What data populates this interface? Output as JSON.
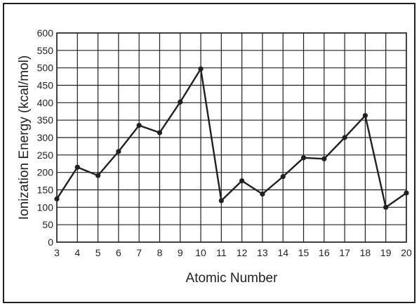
{
  "chart_data": {
    "type": "line",
    "title": "",
    "xlabel": "Atomic Number",
    "ylabel": "Ionization Energy (kcal/mol)",
    "x": [
      3,
      4,
      5,
      6,
      7,
      8,
      9,
      10,
      11,
      12,
      13,
      14,
      15,
      16,
      17,
      18,
      19,
      20
    ],
    "series": [
      {
        "values": [
          124,
          215,
          191,
          260,
          335,
          314,
          402,
          497,
          119,
          176,
          138,
          188,
          242,
          239,
          300,
          363,
          100,
          141
        ]
      }
    ],
    "xlim": [
      3,
      20
    ],
    "ylim": [
      0,
      600
    ],
    "x_ticks": [
      "3",
      "4",
      "5",
      "6",
      "7",
      "8",
      "9",
      "10",
      "11",
      "12",
      "13",
      "14",
      "15",
      "16",
      "17",
      "18",
      "19",
      "20"
    ],
    "y_ticks": [
      "0",
      "50",
      "100",
      "150",
      "200",
      "250",
      "300",
      "350",
      "400",
      "450",
      "500",
      "550",
      "600"
    ],
    "grid": true,
    "colors": {
      "line": "#231f20",
      "grid": "#231f20",
      "text": "#231f20"
    }
  }
}
